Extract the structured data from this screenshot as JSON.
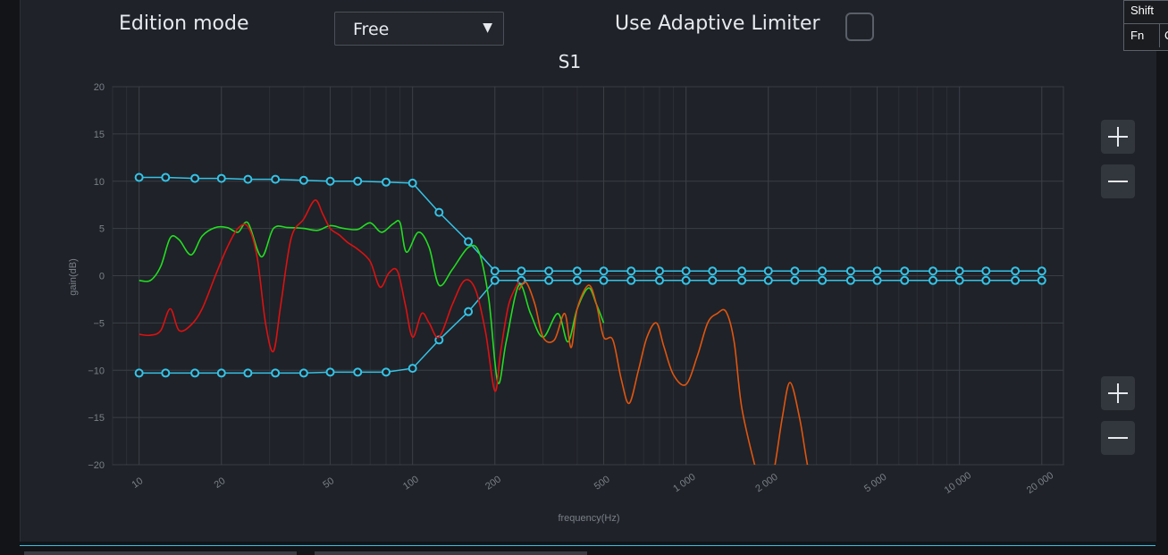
{
  "toolbar": {
    "edition_label": "Edition mode",
    "edition_value": "Free",
    "limiter_label": "Use Adaptive Limiter",
    "limiter_checked": false
  },
  "keyboard": {
    "shift": "Shift",
    "fn": "Fn",
    "extra": "C"
  },
  "zoom": {
    "plus": "plus-icon",
    "minus": "minus-icon"
  },
  "colors": {
    "background": "#1f2228",
    "grid": "#3a3e45",
    "target": "#35c3e6",
    "green": "#22dd22",
    "red": "#dd1111",
    "orange": "#e0550f",
    "text": "#e6e9ee"
  },
  "chart_data": {
    "type": "line",
    "title": "S1",
    "xlabel": "frequency(Hz)",
    "ylabel": "gain(dB)",
    "xscale": "log",
    "xlim": [
      8,
      24000
    ],
    "ylim": [
      -20,
      20
    ],
    "x_ticks": [
      10,
      20,
      50,
      100,
      200,
      500,
      1000,
      2000,
      5000,
      10000,
      20000
    ],
    "x_tick_labels": [
      "10",
      "20",
      "50",
      "100",
      "200",
      "500",
      "1 000",
      "2 000",
      "5 000",
      "10 000",
      "20 000"
    ],
    "y_ticks": [
      20,
      15,
      10,
      5,
      0,
      -5,
      -10,
      -15,
      -20
    ],
    "y_tick_labels": [
      "20",
      "15",
      "10",
      "5",
      "0",
      "−5",
      "−10",
      "−15",
      "−20"
    ],
    "grid": true,
    "series": [
      {
        "color": "#35c3e6",
        "markers": true,
        "x": [
          10,
          12.5,
          16,
          20,
          25,
          31.5,
          40,
          50,
          63,
          80,
          100,
          125,
          160,
          200,
          250,
          315,
          400,
          500,
          630,
          800,
          1000,
          1250,
          1600,
          2000,
          2500,
          3150,
          4000,
          5000,
          6300,
          8000,
          10000,
          12500,
          16000,
          20000
        ],
        "y": [
          10.4,
          10.4,
          10.3,
          10.3,
          10.2,
          10.2,
          10.1,
          10.0,
          10.0,
          9.9,
          9.8,
          6.7,
          3.6,
          0.5,
          0.5,
          0.5,
          0.5,
          0.5,
          0.5,
          0.5,
          0.5,
          0.5,
          0.5,
          0.5,
          0.5,
          0.5,
          0.5,
          0.5,
          0.5,
          0.5,
          0.5,
          0.5,
          0.5,
          0.5
        ]
      },
      {
        "color": "#35c3e6",
        "markers": true,
        "x": [
          10,
          12.5,
          16,
          20,
          25,
          31.5,
          40,
          50,
          63,
          80,
          100,
          125,
          160,
          200,
          250,
          315,
          400,
          500,
          630,
          800,
          1000,
          1250,
          1600,
          2000,
          2500,
          3150,
          4000,
          5000,
          6300,
          8000,
          10000,
          12500,
          16000,
          20000
        ],
        "y": [
          -10.3,
          -10.3,
          -10.3,
          -10.3,
          -10.3,
          -10.3,
          -10.3,
          -10.2,
          -10.2,
          -10.2,
          -9.8,
          -6.8,
          -3.8,
          -0.5,
          -0.5,
          -0.5,
          -0.5,
          -0.5,
          -0.5,
          -0.5,
          -0.5,
          -0.5,
          -0.5,
          -0.5,
          -0.5,
          -0.5,
          -0.5,
          -0.5,
          -0.5,
          -0.5,
          -0.5,
          -0.5,
          -0.5,
          -0.5
        ]
      },
      {
        "color": "#22dd22",
        "markers": false,
        "x": [
          10,
          11,
          12,
          13,
          14,
          15.5,
          17,
          19,
          21,
          23,
          25,
          28,
          31,
          35,
          40,
          45,
          50,
          56,
          63,
          70,
          77,
          85,
          90,
          95,
          105,
          115,
          125,
          140,
          160,
          175,
          190,
          205,
          220,
          245,
          270,
          300,
          340,
          370,
          400,
          440,
          470,
          500
        ],
        "y": [
          -0.5,
          -0.5,
          1.0,
          4.0,
          3.8,
          2.2,
          4.2,
          5.1,
          5.1,
          4.6,
          5.6,
          2.0,
          5.0,
          5.1,
          5.0,
          4.8,
          5.3,
          5.0,
          4.9,
          5.6,
          4.6,
          5.5,
          5.6,
          2.5,
          4.6,
          3.0,
          -1.0,
          0.7,
          3.0,
          2.5,
          -2.5,
          -11.3,
          -7.0,
          -1.0,
          -4.0,
          -6.5,
          -4.0,
          -7.0,
          -3.5,
          -1.3,
          -3.0,
          -5.0
        ]
      },
      {
        "color": "#dd1111",
        "markers": false,
        "x": [
          10,
          11,
          12,
          13,
          14,
          15.5,
          17,
          19,
          21,
          23,
          25,
          27,
          29,
          31,
          33,
          36,
          40,
          44,
          47,
          50,
          54,
          58,
          63,
          70,
          76,
          82,
          88,
          94,
          100,
          108,
          115,
          125,
          140,
          155,
          170,
          185,
          200,
          210,
          225,
          245
        ],
        "y": [
          -6.2,
          -6.3,
          -5.8,
          -3.5,
          -5.8,
          -5.2,
          -3.5,
          0.0,
          3.0,
          5.0,
          5.2,
          2.0,
          -5.0,
          -8.0,
          -3.0,
          4.0,
          6.0,
          8.0,
          6.5,
          5.0,
          4.3,
          3.5,
          2.8,
          1.5,
          -1.2,
          0.3,
          0.5,
          -3.0,
          -6.5,
          -4.0,
          -5.0,
          -6.5,
          -3.0,
          -0.5,
          -1.5,
          -6.0,
          -12.2,
          -8.0,
          -3.0,
          -0.6
        ]
      },
      {
        "color": "#e0550f",
        "markers": false,
        "x": [
          245,
          260,
          280,
          300,
          330,
          360,
          380,
          400,
          440,
          470,
          500,
          540,
          580,
          620,
          670,
          720,
          780,
          830,
          900,
          1000,
          1100,
          1200,
          1300,
          1400,
          1500,
          1600,
          1800,
          1950,
          2100,
          2250,
          2400,
          2600,
          2800,
          3100
        ],
        "y": [
          -1.5,
          -0.7,
          -3.0,
          -6.5,
          -6.8,
          -4.0,
          -7.6,
          -3.5,
          -1.0,
          -3.0,
          -6.5,
          -6.8,
          -11.0,
          -13.5,
          -10.0,
          -6.5,
          -5.0,
          -7.5,
          -10.5,
          -11.5,
          -8.5,
          -5.0,
          -4.0,
          -3.8,
          -7.0,
          -14.0,
          -20.5,
          -24.0,
          -20.5,
          -15.0,
          -11.3,
          -15.0,
          -20.5,
          -26.0
        ]
      }
    ]
  }
}
